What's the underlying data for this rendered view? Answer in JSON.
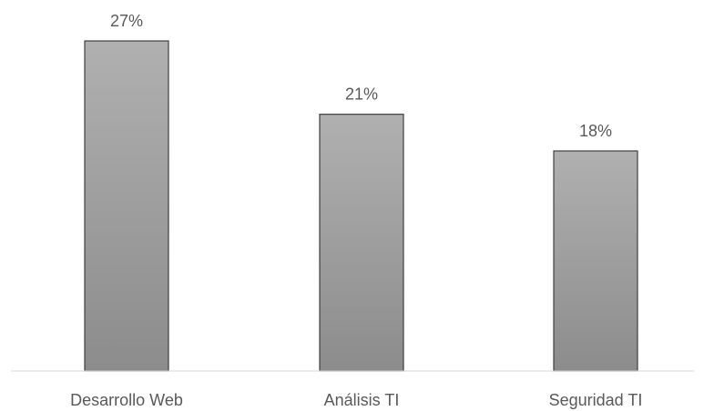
{
  "chart_data": {
    "type": "bar",
    "categories": [
      "Desarrollo Web",
      "Análisis TI",
      "Seguridad TI"
    ],
    "values": [
      27,
      21,
      18
    ],
    "data_labels": [
      "27%",
      "21%",
      "18%"
    ],
    "unit": "%",
    "title": "",
    "xlabel": "",
    "ylabel": "",
    "ylim": [
      0,
      27
    ],
    "grid": false,
    "legend": "none",
    "colors": {
      "bar_fill_top": "#b0b0b0",
      "bar_fill_bottom": "#8c8c8c",
      "bar_stroke": "#3f3f3f",
      "axis": "#d9d9d9",
      "text": "#595959"
    }
  }
}
